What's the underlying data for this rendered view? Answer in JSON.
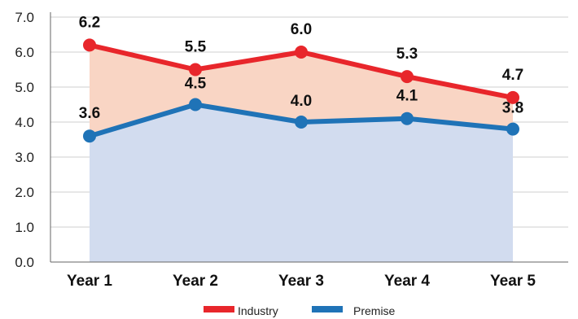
{
  "chart_data": {
    "type": "line",
    "categories": [
      "Year 1",
      "Year 2",
      "Year 3",
      "Year 4",
      "Year 5"
    ],
    "series": [
      {
        "name": "Industry",
        "values": [
          6.2,
          5.5,
          6.0,
          5.3,
          4.7
        ],
        "color": "#e8262b",
        "fill": "#f9d5c4"
      },
      {
        "name": "Premise",
        "values": [
          3.6,
          4.5,
          4.0,
          4.1,
          3.8
        ],
        "color": "#1f73b7",
        "fill": "#d2dcef"
      }
    ],
    "ylim": [
      0,
      7
    ],
    "yticks": [
      "0.0",
      "1.0",
      "2.0",
      "3.0",
      "4.0",
      "5.0",
      "6.0",
      "7.0"
    ],
    "grid": true,
    "legend": "bottom"
  }
}
